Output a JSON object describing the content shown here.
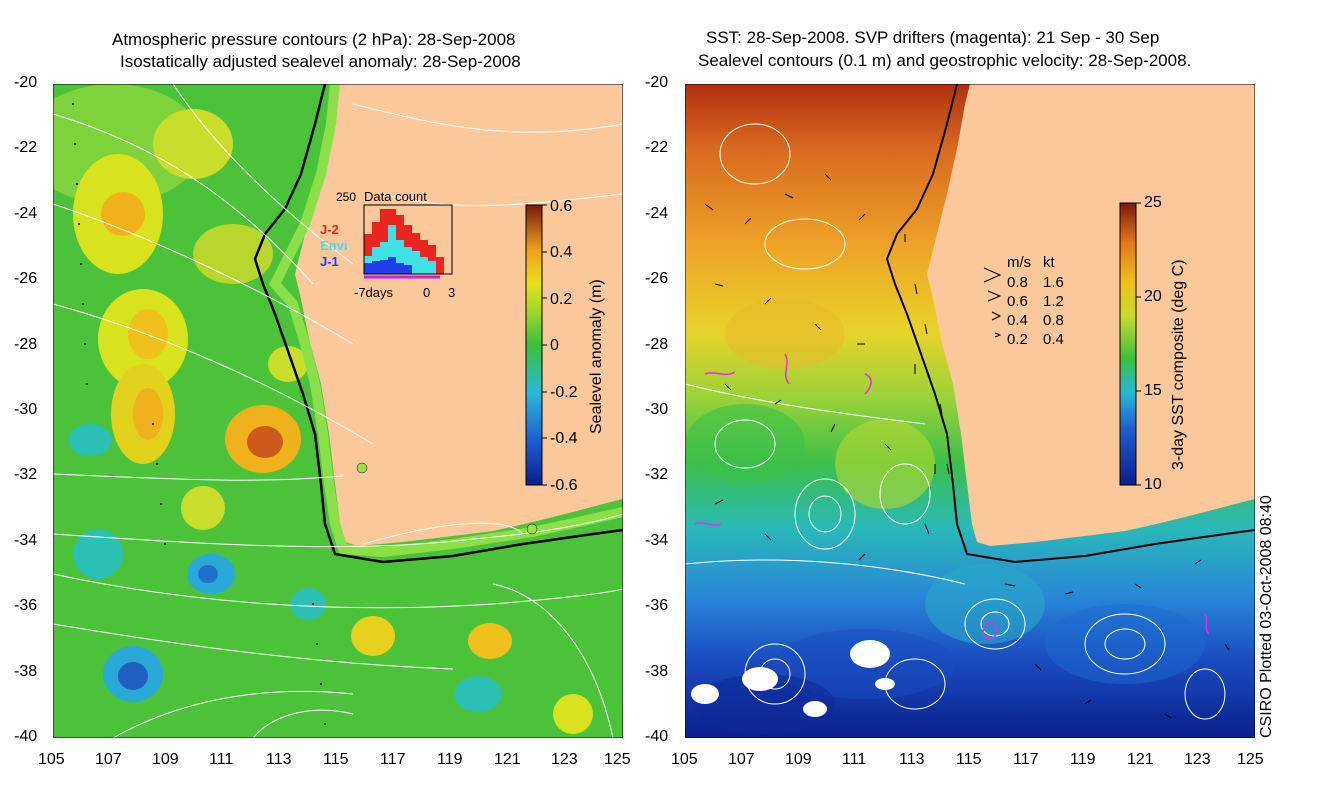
{
  "left_panel": {
    "title_line1": "Atmospheric pressure contours (2 hPa): 28-Sep-2008",
    "title_line2": "Isostatically adjusted sealevel anomaly: 28-Sep-2008",
    "colorbar": {
      "label": "Sealevel anomaly (m)",
      "ticks": [
        "0.6",
        "0.4",
        "0.2",
        "0",
        "-0.2",
        "-0.4",
        "-0.6"
      ],
      "range": [
        -0.6,
        0.6
      ]
    },
    "inset": {
      "title": "Data count",
      "ymax_label": "250",
      "x_labels": [
        "-7days",
        "0",
        "3"
      ],
      "legend": [
        {
          "name": "J-2",
          "color": "#e8261f"
        },
        {
          "name": "Envi",
          "color": "#3fe0e6"
        },
        {
          "name": "J-1",
          "color": "#1f3fe8"
        }
      ]
    }
  },
  "right_panel": {
    "title_line1": "SST: 28-Sep-2008. SVP drifters (magenta): 21 Sep - 30 Sep",
    "title_line2": "Sealevel contours (0.1 m) and geostrophic velocity: 28-Sep-2008.",
    "colorbar": {
      "label": "3-day SST composite (deg C)",
      "ticks": [
        "25",
        "20",
        "15",
        "10"
      ],
      "range": [
        10,
        25
      ]
    },
    "velocity_legend": {
      "header_ms": "m/s",
      "header_kt": "kt",
      "rows": [
        {
          "ms": "0.8",
          "kt": "1.6"
        },
        {
          "ms": "0.6",
          "kt": "1.2"
        },
        {
          "ms": "0.4",
          "kt": "0.8"
        },
        {
          "ms": "0.2",
          "kt": "0.4"
        }
      ]
    }
  },
  "axes": {
    "lat_ticks": [
      "-20",
      "-22",
      "-24",
      "-26",
      "-28",
      "-30",
      "-32",
      "-34",
      "-36",
      "-38",
      "-40"
    ],
    "lon_ticks": [
      "105",
      "107",
      "109",
      "111",
      "113",
      "115",
      "117",
      "119",
      "121",
      "123",
      "125"
    ]
  },
  "credit": "CSIRO Plotted 03-Oct-2008 08:40"
}
